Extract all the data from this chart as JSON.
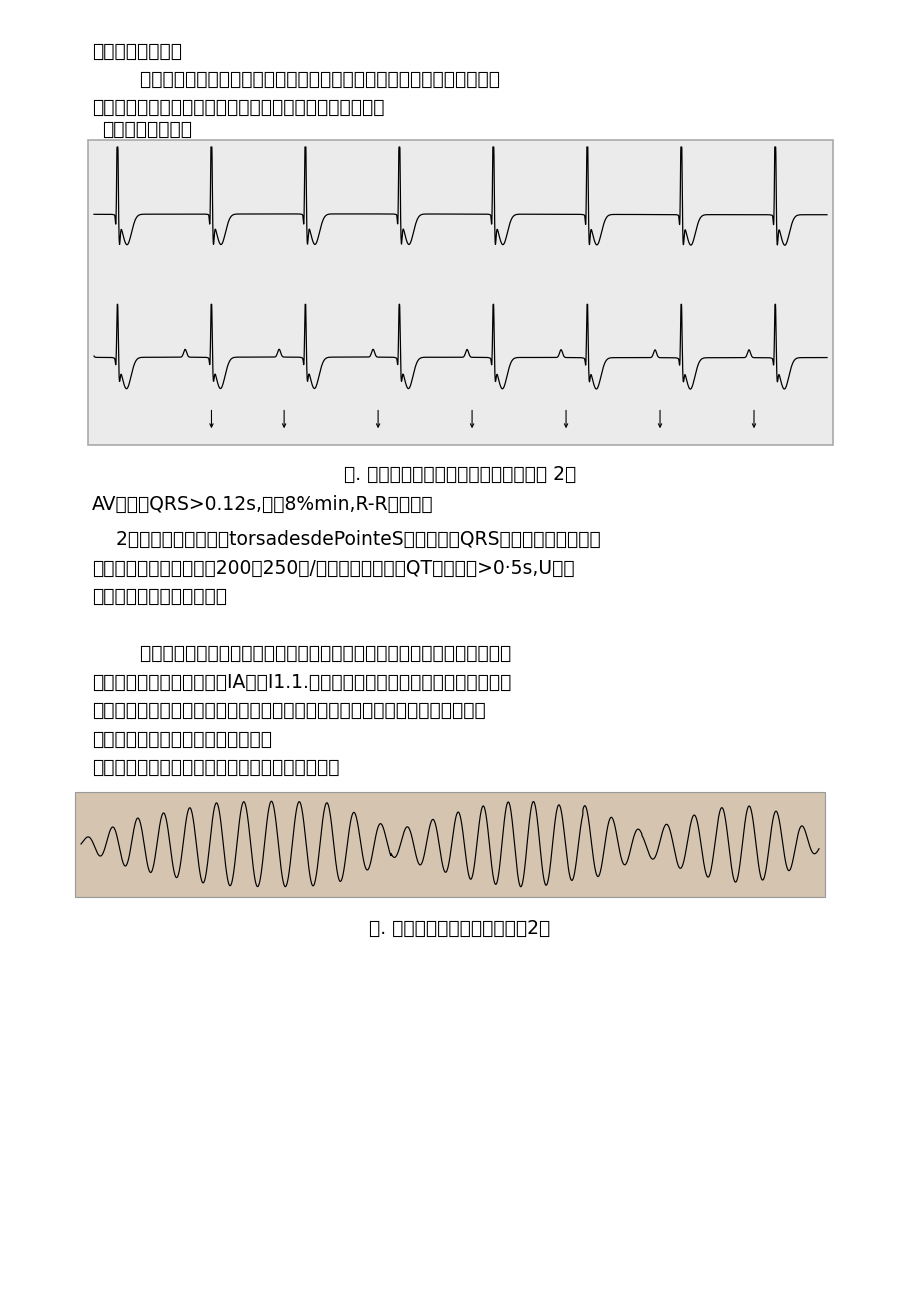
{
  "background_color": "#ffffff",
  "page_width": 9.2,
  "page_height": 13.01,
  "ecg1_caption": "图. 加速性室性自主节律（来源参考文献 2）",
  "ecg1_note": "AV分离，QRS>0.12s,速率8%min,R-R基本规则",
  "ecg2_caption": "图. 扭转型室速（来源参考文献2）",
  "line1": "室夺获也很常见。",
  "line2": "        本型室速通常发生于急性心肌梗死再灌注期间、心脏手术、心肌病、风湿",
  "line3": "热与洋地黄中毒。患者一般无症状也不影响预后，通常无需",
  "line4": "抗心律失常治疗。",
  "sec2_l1": "    2）尖端扭转型室速（torsadesdePointeS）：发作时QRS波振幅与波峰呈周期",
  "sec2_l2": "性改变，呈扭转样，频率200～250次/分。其他特征包括QT间期通常>0·5s,U波显",
  "sec2_l3": "著。可发展为室颤和猝死。",
  "sec2_l4": "        病因分为先天性和获得性。先天性包括：多种编码钠、钾离子通道的基因突",
  "sec2_l5": "变。获得性包括：药源性（IA类或I1.1.类抗心律失常药物、三环类抗抑郁药、大",
  "sec2_l6": "环内酯类抗生素、抗组胺药、抗肿瘤药物、乌头碱等）、心源性（心动过缓伴长",
  "sec2_l7": "间歇）、神经源性（颅内病变）及代",
  "sec2_l8": "谢性（电解质紊乱，如低钾血症、低镁血症）等。"
}
